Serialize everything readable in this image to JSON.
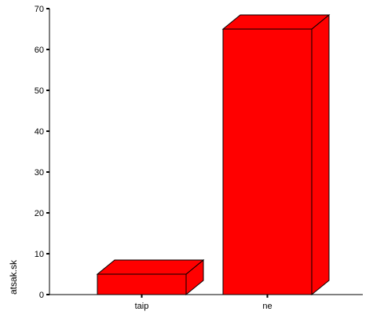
{
  "chart_data": {
    "type": "bar",
    "categories": [
      "taip",
      "ne"
    ],
    "values": [
      5,
      65
    ],
    "ylabel": "atsak.sk",
    "xlabel": "",
    "ylim": [
      0,
      70
    ],
    "yticks": [
      0,
      10,
      20,
      30,
      40,
      50,
      60,
      70
    ],
    "grid": false,
    "bar_style": "3d",
    "bar_color": "#ff0000",
    "edge_color": "#000000"
  }
}
